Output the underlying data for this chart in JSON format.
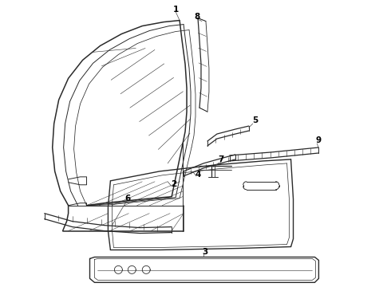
{
  "background_color": "#ffffff",
  "line_color": "#2a2a2a",
  "label_color": "#000000",
  "label_fontsize": 7.5,
  "fig_width": 4.9,
  "fig_height": 3.6,
  "dpi": 100
}
